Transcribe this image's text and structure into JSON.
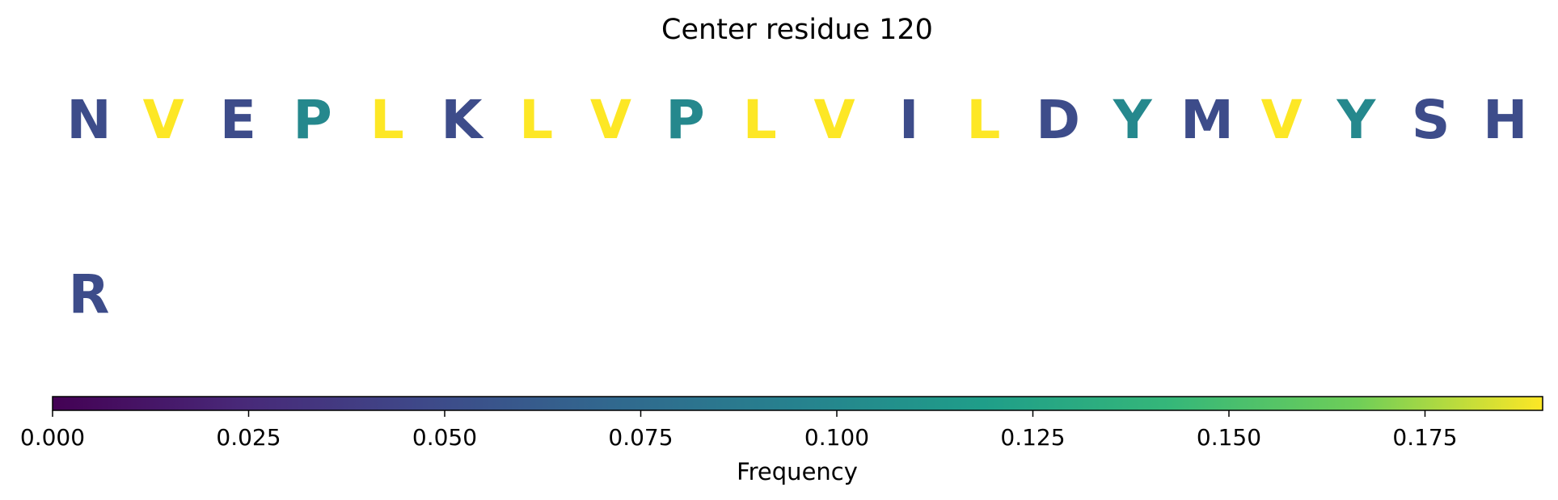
{
  "chart_data": {
    "type": "heatmap",
    "title": "Center residue 120",
    "rows": [
      {
        "residues": [
          {
            "letter": "N",
            "frequency": 0.05
          },
          {
            "letter": "V",
            "frequency": 0.19
          },
          {
            "letter": "E",
            "frequency": 0.05
          },
          {
            "letter": "P",
            "frequency": 0.1
          },
          {
            "letter": "L",
            "frequency": 0.19
          },
          {
            "letter": "K",
            "frequency": 0.05
          },
          {
            "letter": "L",
            "frequency": 0.19
          },
          {
            "letter": "V",
            "frequency": 0.19
          },
          {
            "letter": "P",
            "frequency": 0.1
          },
          {
            "letter": "L",
            "frequency": 0.19
          },
          {
            "letter": "V",
            "frequency": 0.19
          },
          {
            "letter": "I",
            "frequency": 0.05
          },
          {
            "letter": "L",
            "frequency": 0.19
          },
          {
            "letter": "D",
            "frequency": 0.05
          },
          {
            "letter": "Y",
            "frequency": 0.1
          },
          {
            "letter": "M",
            "frequency": 0.05
          },
          {
            "letter": "V",
            "frequency": 0.19
          },
          {
            "letter": "Y",
            "frequency": 0.1
          },
          {
            "letter": "S",
            "frequency": 0.05
          },
          {
            "letter": "H",
            "frequency": 0.05
          }
        ]
      },
      {
        "residues": [
          {
            "letter": "R",
            "frequency": 0.05
          }
        ]
      }
    ],
    "colorbar": {
      "label": "Frequency",
      "colormap": "viridis",
      "range": [
        0,
        0.19
      ],
      "ticks": [
        0.0,
        0.025,
        0.05,
        0.075,
        0.1,
        0.125,
        0.15,
        0.175
      ],
      "tick_labels": [
        "0.000",
        "0.025",
        "0.050",
        "0.075",
        "0.100",
        "0.125",
        "0.150",
        "0.175"
      ]
    }
  }
}
